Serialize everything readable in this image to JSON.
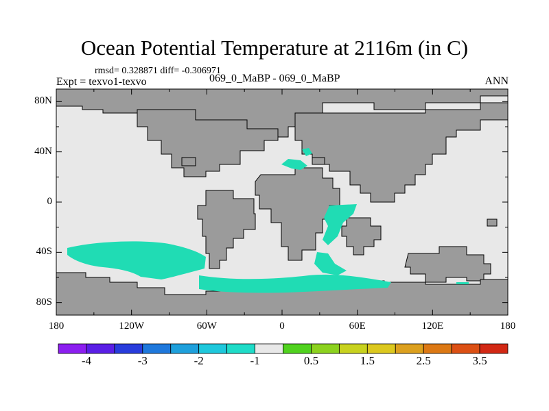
{
  "header": {
    "title": "Ocean Potential Temperature at 2116m (in C)",
    "stats": "rmsd= 0.328871 diff= -0.306971",
    "left_subtitle": "Expt = texvo1-texvo",
    "center_subtitle": "069_0_MaBP - 069_0_MaBP",
    "right_subtitle": "ANN"
  },
  "map": {
    "projection": "cylindrical-equidistant",
    "lon_range": [
      -180,
      180
    ],
    "lat_range": [
      -90,
      90
    ],
    "lat_ticks": [
      {
        "value": 80,
        "label": "80N"
      },
      {
        "value": 40,
        "label": "40N"
      },
      {
        "value": 0,
        "label": "0"
      },
      {
        "value": -40,
        "label": "40S"
      },
      {
        "value": -80,
        "label": "80S"
      }
    ],
    "lon_ticks": [
      {
        "value": -180,
        "label": "180"
      },
      {
        "value": -120,
        "label": "120W"
      },
      {
        "value": -60,
        "label": "60W"
      },
      {
        "value": 0,
        "label": "0"
      },
      {
        "value": 60,
        "label": "60E"
      },
      {
        "value": 120,
        "label": "120E"
      },
      {
        "value": 180,
        "label": "180"
      }
    ],
    "colors": {
      "land": "#9b9b9b",
      "ocean_near_zero": "#e8e8e8",
      "cool_anomaly": "#20dcb4",
      "coastline": "#000000"
    },
    "anomaly_regions_value": -0.75
  },
  "colorbar": {
    "colors": [
      "#8c1ef0",
      "#5a1ee6",
      "#283cdc",
      "#1e78dc",
      "#1ea0dc",
      "#1ec8dc",
      "#1edcc8",
      "#e8e8e8",
      "#50d21e",
      "#8cd21e",
      "#c8d21e",
      "#dcc81e",
      "#dca01e",
      "#dc7814",
      "#dc5014",
      "#d22814"
    ],
    "labels": [
      "-4",
      "-3",
      "-2",
      "-1",
      "0.5",
      "1.5",
      "2.5",
      "3.5"
    ]
  }
}
